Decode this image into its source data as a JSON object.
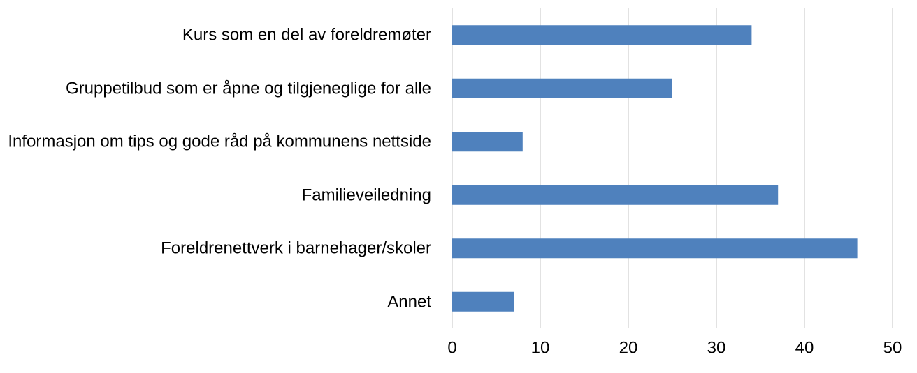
{
  "chart_data": {
    "type": "bar",
    "orientation": "horizontal",
    "categories": [
      "Kurs som en del av foreldremøter",
      "Gruppetilbud som er åpne og tilgjeneglige for alle",
      "Informasjon om tips og gode råd på kommunens nettside",
      "Familieveiledning",
      "Foreldrenettverk i barnehager/skoler",
      "Annet"
    ],
    "values": [
      34,
      25,
      8,
      37,
      46,
      7
    ],
    "color": "#4f81bd",
    "xlim": [
      0,
      50
    ],
    "xticks": [
      0,
      10,
      20,
      30,
      40,
      50
    ],
    "grid": true
  }
}
